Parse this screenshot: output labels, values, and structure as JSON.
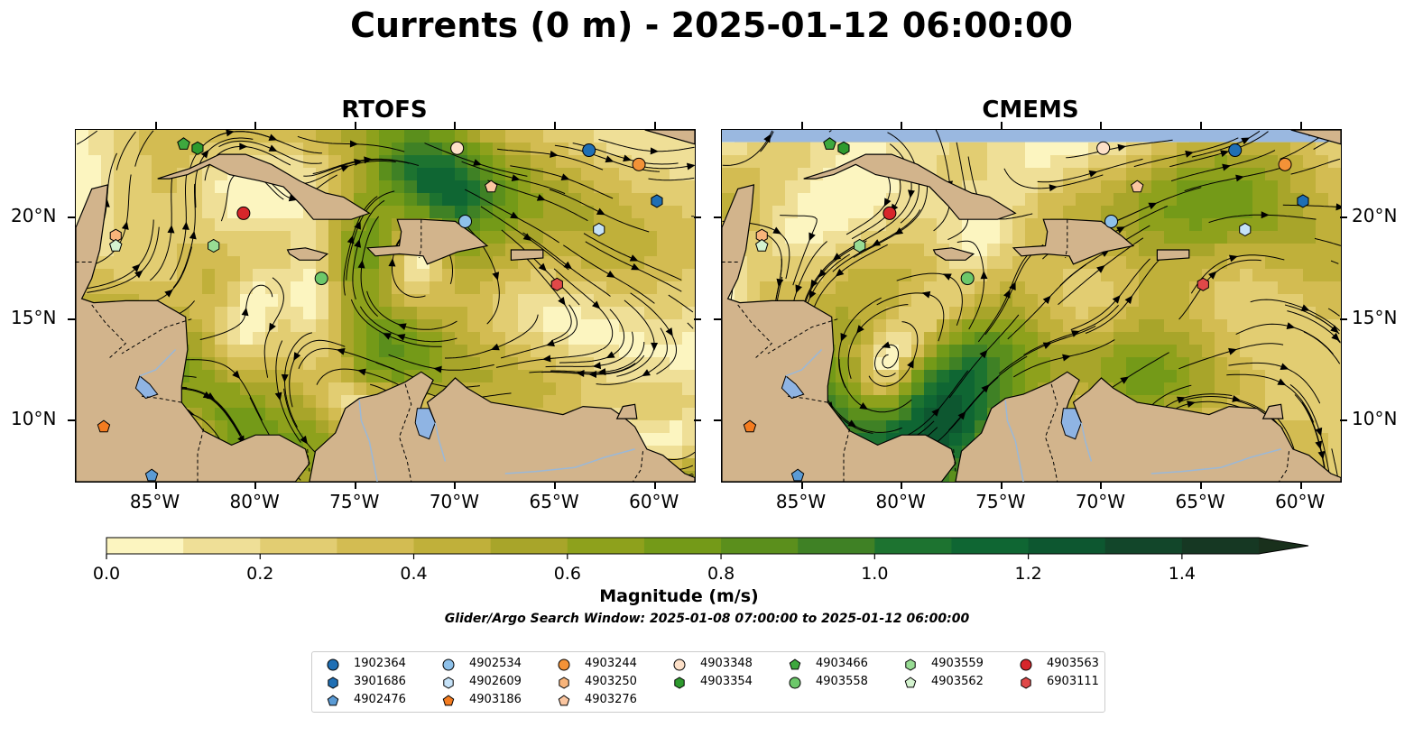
{
  "title": "Currents (0 m) - 2025-01-12 06:00:00",
  "panels": [
    {
      "title": "RTOFS",
      "seed": 3
    },
    {
      "title": "CMEMS",
      "seed": 11
    }
  ],
  "map": {
    "lon_range": [
      -89,
      -58
    ],
    "lat_range": [
      7,
      24.3
    ],
    "lon_ticks": [
      {
        "value": -85,
        "label": "85°W"
      },
      {
        "value": -80,
        "label": "80°W"
      },
      {
        "value": -75,
        "label": "75°W"
      },
      {
        "value": -70,
        "label": "70°W"
      },
      {
        "value": -65,
        "label": "65°W"
      },
      {
        "value": -60,
        "label": "60°W"
      }
    ],
    "lat_ticks": [
      {
        "value": 20,
        "label": "20°N"
      },
      {
        "value": 15,
        "label": "15°N"
      },
      {
        "value": 10,
        "label": "10°N"
      }
    ],
    "colors": {
      "land": "#d2b48c",
      "lake": "#8fb4e3",
      "river": "#9ab8d8",
      "no_data": "#9ab8e0"
    }
  },
  "colorbar": {
    "label": "Magnitude (m/s)",
    "min": 0.0,
    "max": 1.5,
    "extend": "max",
    "ticks": [
      {
        "value": 0.0,
        "label": "0.0"
      },
      {
        "value": 0.2,
        "label": "0.2"
      },
      {
        "value": 0.4,
        "label": "0.4"
      },
      {
        "value": 0.6,
        "label": "0.6"
      },
      {
        "value": 0.8,
        "label": "0.8"
      },
      {
        "value": 1.0,
        "label": "1.0"
      },
      {
        "value": 1.2,
        "label": "1.2"
      },
      {
        "value": 1.4,
        "label": "1.4"
      }
    ],
    "colors": [
      "#fcf5c0",
      "#efdf97",
      "#e2cd72",
      "#d3bc52",
      "#c0b03a",
      "#a8a52a",
      "#8ea11c",
      "#749a18",
      "#5b8f1c",
      "#3f8125",
      "#1d7330",
      "#0f6633",
      "#0d5730",
      "#12462a",
      "#163823",
      "#19301c"
    ]
  },
  "search_window": "Glider/Argo Search Window: 2025-01-08 07:00:00 to 2025-01-12 06:00:00",
  "legend": [
    {
      "id": "1902364",
      "shape": "circle",
      "color": "#1f6fb4",
      "col": 0,
      "row": 0,
      "lon": -63.3,
      "lat": 23.3
    },
    {
      "id": "3901686",
      "shape": "hexagon",
      "color": "#1f6fb4",
      "col": 0,
      "row": 1,
      "lon": -59.9,
      "lat": 20.8
    },
    {
      "id": "4902476",
      "shape": "pentagon",
      "color": "#5b9bd5",
      "col": 0,
      "row": 2,
      "lon": -85.2,
      "lat": 7.3
    },
    {
      "id": "4902534",
      "shape": "circle",
      "color": "#8ec1ea",
      "col": 1,
      "row": 0,
      "lon": -69.5,
      "lat": 19.8
    },
    {
      "id": "4902609",
      "shape": "hexagon",
      "color": "#c5e2f8",
      "col": 1,
      "row": 1,
      "lon": -62.8,
      "lat": 19.4
    },
    {
      "id": "4903186",
      "shape": "pentagon",
      "color": "#f47c20",
      "col": 1,
      "row": 2,
      "lon": -87.6,
      "lat": 9.7
    },
    {
      "id": "4903244",
      "shape": "circle",
      "color": "#f39237",
      "col": 2,
      "row": 0,
      "lon": -60.8,
      "lat": 22.6
    },
    {
      "id": "4903250",
      "shape": "hexagon",
      "color": "#f8b47a",
      "col": 2,
      "row": 1,
      "lon": -87.0,
      "lat": 19.1
    },
    {
      "id": "4903276",
      "shape": "pentagon",
      "color": "#fbc6a0",
      "col": 2,
      "row": 2,
      "lon": -68.2,
      "lat": 21.5
    },
    {
      "id": "4903348",
      "shape": "circle",
      "color": "#fde0c8",
      "col": 3,
      "row": 0,
      "lon": -69.9,
      "lat": 23.4
    },
    {
      "id": "4903354",
      "shape": "hexagon",
      "color": "#2e9a2e",
      "col": 3,
      "row": 1,
      "lon": -82.9,
      "lat": 23.4
    },
    {
      "id": "4903466",
      "shape": "pentagon",
      "color": "#3ea83e",
      "col": 4,
      "row": 0,
      "lon": -83.6,
      "lat": 23.6
    },
    {
      "id": "4903558",
      "shape": "circle",
      "color": "#6cc86a",
      "col": 4,
      "row": 1,
      "lon": -76.7,
      "lat": 17.0
    },
    {
      "id": "4903559",
      "shape": "hexagon",
      "color": "#98dc94",
      "col": 5,
      "row": 0,
      "lon": -82.1,
      "lat": 18.6
    },
    {
      "id": "4903562",
      "shape": "pentagon",
      "color": "#d4f3cf",
      "col": 5,
      "row": 1,
      "lon": -87.0,
      "lat": 18.6
    },
    {
      "id": "4903563",
      "shape": "circle",
      "color": "#d7262b",
      "col": 6,
      "row": 0,
      "lon": -80.6,
      "lat": 20.2
    },
    {
      "id": "6903111",
      "shape": "hexagon",
      "color": "#e04848",
      "col": 6,
      "row": 1,
      "lon": -64.9,
      "lat": 16.7
    }
  ]
}
